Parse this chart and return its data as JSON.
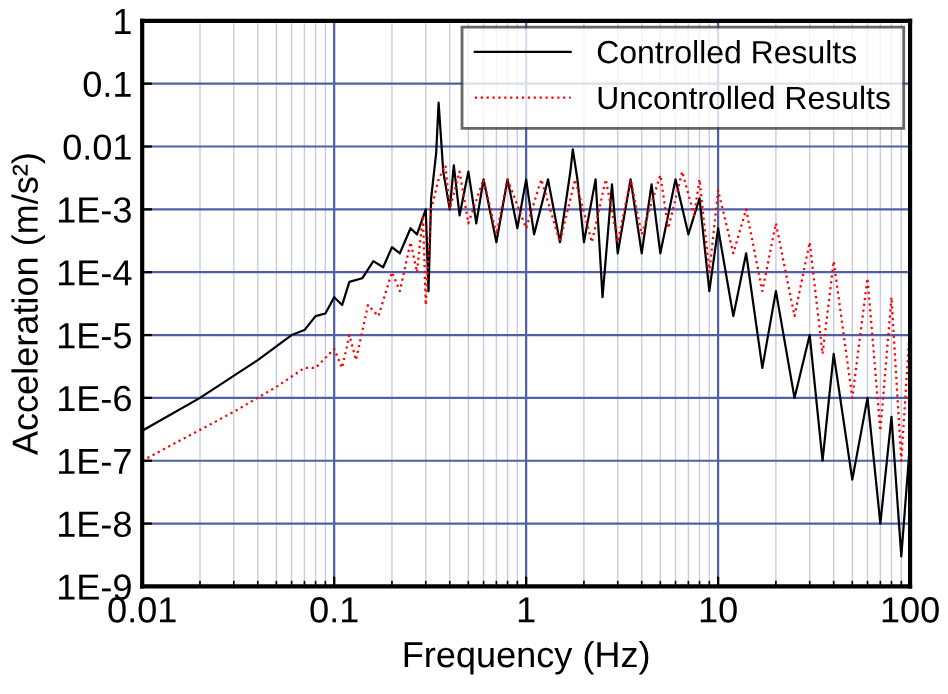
{
  "chart_data": {
    "type": "line",
    "xlabel": "Frequency (Hz)",
    "ylabel": "Acceleration (m/s²)",
    "log": "xy",
    "xlim": [
      0.01,
      100
    ],
    "xticks": [
      0.01,
      0.1,
      1,
      10,
      100
    ],
    "ylim": [
      1e-09,
      1
    ],
    "yticks": [
      {
        "value": 1,
        "label": "1"
      },
      {
        "value": 0.1,
        "label": "0.1"
      },
      {
        "value": 0.01,
        "label": "0.01"
      },
      {
        "value": 0.001,
        "label": "1E-3"
      },
      {
        "value": 0.0001,
        "label": "1E-4"
      },
      {
        "value": 1e-05,
        "label": "1E-5"
      },
      {
        "value": 1e-06,
        "label": "1E-6"
      },
      {
        "value": 1e-07,
        "label": "1E-7"
      },
      {
        "value": 1e-08,
        "label": "1E-8"
      },
      {
        "value": 1e-09,
        "label": "1E-9"
      }
    ],
    "grid": true,
    "legend": "top right",
    "series": [
      {
        "name": "Controlled Results",
        "color": "#000000",
        "line_style": "solid",
        "x": [
          0.01,
          0.02,
          0.04,
          0.06,
          0.07,
          0.08,
          0.09,
          0.1,
          0.11,
          0.12,
          0.14,
          0.16,
          0.18,
          0.2,
          0.22,
          0.25,
          0.27,
          0.3,
          0.31,
          0.32,
          0.34,
          0.35,
          0.37,
          0.4,
          0.42,
          0.45,
          0.5,
          0.55,
          0.6,
          0.7,
          0.8,
          0.9,
          1.0,
          1.1,
          1.3,
          1.5,
          1.7,
          1.75,
          1.85,
          2.0,
          2.3,
          2.5,
          2.8,
          3,
          3.5,
          4,
          4.5,
          5,
          6,
          7,
          8,
          9,
          10,
          12,
          14,
          17,
          20,
          25,
          30,
          35,
          40,
          50,
          60,
          70,
          80,
          90,
          100
        ],
        "values": [
          3e-07,
          1e-06,
          4e-06,
          1e-05,
          1.2e-05,
          2e-05,
          2.2e-05,
          4e-05,
          3e-05,
          7e-05,
          8e-05,
          0.00015,
          0.00012,
          0.00025,
          0.0002,
          0.0005,
          0.0004,
          0.001,
          5e-05,
          0.0015,
          0.008,
          0.05,
          0.004,
          0.001,
          0.005,
          0.0008,
          0.004,
          0.0006,
          0.003,
          0.0003,
          0.003,
          0.0005,
          0.003,
          0.0004,
          0.003,
          0.0003,
          0.004,
          0.009,
          0.003,
          0.0003,
          0.003,
          4e-05,
          0.0025,
          0.0002,
          0.003,
          0.0002,
          0.0025,
          0.0002,
          0.003,
          0.0004,
          0.0015,
          5e-05,
          0.0005,
          2e-05,
          0.0002,
          3e-06,
          5e-05,
          1e-06,
          1e-05,
          1e-07,
          5e-06,
          5e-08,
          1e-06,
          1e-08,
          5e-07,
          3e-09,
          2e-07
        ]
      },
      {
        "name": "Uncontrolled Results",
        "color": "#ff0000",
        "line_style": "dotted",
        "x": [
          0.01,
          0.03,
          0.05,
          0.07,
          0.08,
          0.1,
          0.11,
          0.12,
          0.13,
          0.15,
          0.17,
          0.2,
          0.22,
          0.25,
          0.27,
          0.29,
          0.3,
          0.32,
          0.35,
          0.38,
          0.4,
          0.45,
          0.5,
          0.6,
          0.7,
          0.8,
          1,
          1.2,
          1.5,
          1.8,
          2.2,
          2.6,
          3,
          3.5,
          4,
          5,
          5.5,
          6.5,
          7.5,
          8,
          9,
          10,
          12,
          14,
          17,
          20,
          25,
          30,
          35,
          40,
          50,
          60,
          70,
          80,
          90,
          100
        ],
        "values": [
          1e-07,
          6e-07,
          1.5e-06,
          3e-06,
          3e-06,
          6e-06,
          3e-06,
          1e-05,
          4e-06,
          3e-05,
          2e-05,
          0.0001,
          5e-05,
          0.0003,
          0.0001,
          0.0008,
          3e-05,
          0.001,
          0.003,
          0.005,
          0.001,
          0.004,
          0.0006,
          0.003,
          0.0004,
          0.003,
          0.0005,
          0.003,
          0.0003,
          0.003,
          0.0003,
          0.003,
          0.0003,
          0.003,
          0.0004,
          0.0035,
          0.0005,
          0.004,
          0.0008,
          0.003,
          0.0001,
          0.002,
          0.0002,
          0.001,
          5e-05,
          0.0006,
          2e-05,
          0.0003,
          5e-06,
          0.00015,
          1e-06,
          8e-05,
          3e-07,
          4e-05,
          1e-07,
          1.5e-05
        ]
      }
    ]
  }
}
